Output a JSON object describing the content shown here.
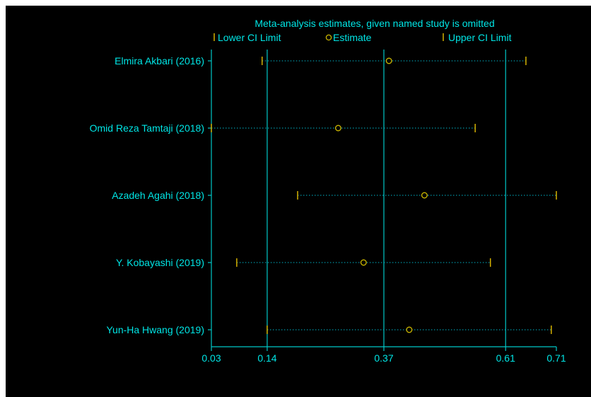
{
  "chart_data": {
    "type": "scatter",
    "title": "Meta-analysis estimates, given named study is omitted",
    "legend": {
      "placement": "top",
      "entries": [
        {
          "key": "lower",
          "label": "Lower CI Limit"
        },
        {
          "key": "estimate",
          "label": "Estimate"
        },
        {
          "key": "upper",
          "label": "Upper CI Limit"
        }
      ]
    },
    "xlabel": "",
    "ylabel": "",
    "xlim": [
      0.03,
      0.71
    ],
    "x_ticks": [
      0.03,
      0.14,
      0.37,
      0.61,
      0.71
    ],
    "x_tick_labels": [
      "0.03",
      "0.14",
      "0.37",
      "0.61",
      "0.71"
    ],
    "reference_lines": [
      0.14,
      0.37,
      0.61
    ],
    "studies": [
      {
        "label": "Elmira Akbari (2016)",
        "lower": 0.13,
        "estimate": 0.38,
        "upper": 0.65
      },
      {
        "label": "Omid Reza Tamtaji  (2018)",
        "lower": 0.03,
        "estimate": 0.28,
        "upper": 0.55
      },
      {
        "label": "Azadeh Agahi (2018)",
        "lower": 0.2,
        "estimate": 0.45,
        "upper": 0.71
      },
      {
        "label": "Y. Kobayashi (2019)",
        "lower": 0.08,
        "estimate": 0.33,
        "upper": 0.58
      },
      {
        "label": "Yun-Ha Hwang (2019)",
        "lower": 0.14,
        "estimate": 0.42,
        "upper": 0.7
      }
    ],
    "grid": false,
    "colors": {
      "background": "#000000",
      "text": "#00e5e5",
      "axis": "#00c8c8",
      "ci_marker": "#d4b000",
      "estimate_marker": "#c8b400",
      "dotted_line": "#00b4c8"
    }
  }
}
